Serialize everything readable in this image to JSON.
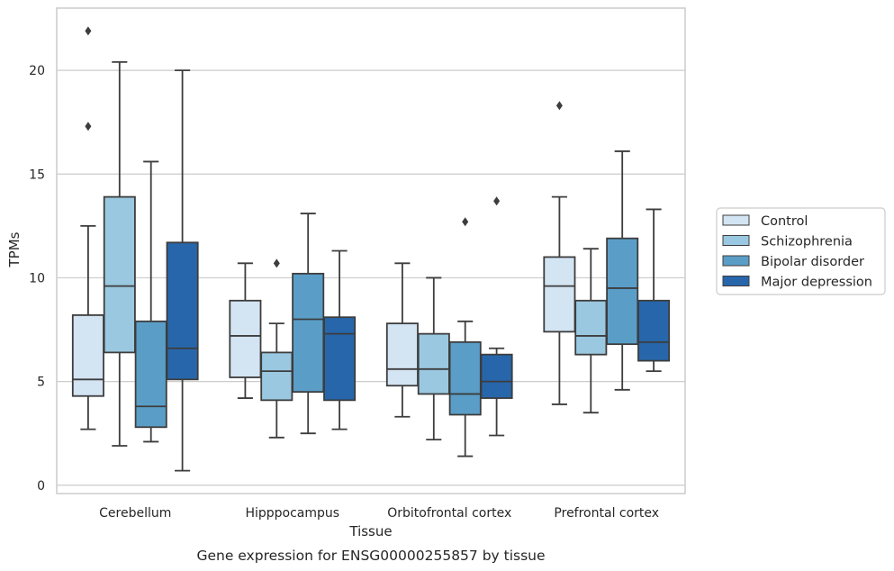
{
  "chart_data": {
    "type": "box",
    "title": "",
    "caption": "Gene expression for ENSG00000255857 by tissue",
    "xlabel": "Tissue",
    "ylabel": "TPMs",
    "ylim": [
      -0.4,
      23.0
    ],
    "yticks": [
      0,
      5,
      10,
      15,
      20
    ],
    "grid": "horizontal",
    "legend_position": "right",
    "categories": [
      "Cerebellum",
      "Hipppocampus",
      "Orbitofrontal cortex",
      "Prefrontal cortex"
    ],
    "series": [
      {
        "name": "Control",
        "color": "#d3e4f3",
        "boxes": [
          {
            "whisker_low": 2.7,
            "q1": 4.3,
            "median": 5.1,
            "q3": 8.2,
            "whisker_high": 12.5,
            "outliers": [
              17.3,
              21.9
            ]
          },
          {
            "whisker_low": 4.2,
            "q1": 5.2,
            "median": 7.2,
            "q3": 8.9,
            "whisker_high": 10.7,
            "outliers": []
          },
          {
            "whisker_low": 3.3,
            "q1": 4.8,
            "median": 5.6,
            "q3": 7.8,
            "whisker_high": 10.7,
            "outliers": []
          },
          {
            "whisker_low": 3.9,
            "q1": 7.4,
            "median": 9.6,
            "q3": 11.0,
            "whisker_high": 13.9,
            "outliers": [
              18.3
            ]
          }
        ]
      },
      {
        "name": "Schizophrenia",
        "color": "#9ac8e0",
        "boxes": [
          {
            "whisker_low": 1.9,
            "q1": 6.4,
            "median": 9.6,
            "q3": 13.9,
            "whisker_high": 20.4,
            "outliers": []
          },
          {
            "whisker_low": 2.3,
            "q1": 4.1,
            "median": 5.5,
            "q3": 6.4,
            "whisker_high": 7.8,
            "outliers": [
              10.7
            ]
          },
          {
            "whisker_low": 2.2,
            "q1": 4.4,
            "median": 5.6,
            "q3": 7.3,
            "whisker_high": 10.0,
            "outliers": []
          },
          {
            "whisker_low": 3.5,
            "q1": 6.3,
            "median": 7.2,
            "q3": 8.9,
            "whisker_high": 11.4,
            "outliers": []
          }
        ]
      },
      {
        "name": "Bipolar disorder",
        "color": "#5a9ec8",
        "boxes": [
          {
            "whisker_low": 2.1,
            "q1": 2.8,
            "median": 3.8,
            "q3": 7.9,
            "whisker_high": 15.6,
            "outliers": []
          },
          {
            "whisker_low": 2.5,
            "q1": 4.5,
            "median": 8.0,
            "q3": 10.2,
            "whisker_high": 13.1,
            "outliers": []
          },
          {
            "whisker_low": 1.4,
            "q1": 3.4,
            "median": 4.4,
            "q3": 6.9,
            "whisker_high": 7.9,
            "outliers": [
              12.7
            ]
          },
          {
            "whisker_low": 4.6,
            "q1": 6.8,
            "median": 9.5,
            "q3": 11.9,
            "whisker_high": 16.1,
            "outliers": []
          }
        ]
      },
      {
        "name": "Major depression",
        "color": "#2766aa",
        "boxes": [
          {
            "whisker_low": 0.7,
            "q1": 5.1,
            "median": 6.6,
            "q3": 11.7,
            "whisker_high": 20.0,
            "outliers": []
          },
          {
            "whisker_low": 2.7,
            "q1": 4.1,
            "median": 7.3,
            "q3": 8.1,
            "whisker_high": 11.3,
            "outliers": []
          },
          {
            "whisker_low": 2.4,
            "q1": 4.2,
            "median": 5.0,
            "q3": 6.3,
            "whisker_high": 6.6,
            "outliers": [
              13.7
            ]
          },
          {
            "whisker_low": 5.5,
            "q1": 6.0,
            "median": 6.9,
            "q3": 8.9,
            "whisker_high": 13.3,
            "outliers": []
          }
        ]
      }
    ],
    "colors": {
      "box_edge": "#3d3d3d",
      "grid": "#cccccc",
      "frame": "#cccccc",
      "text": "#262626"
    }
  }
}
